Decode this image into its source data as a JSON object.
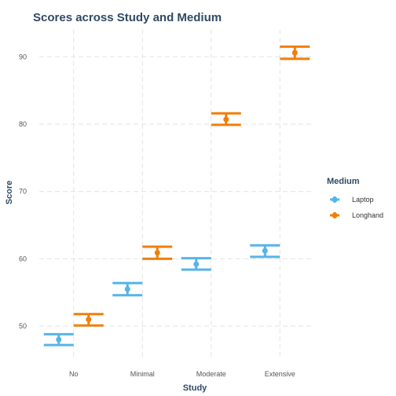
{
  "chart_data": {
    "type": "errorbar",
    "title": "Scores across Study and Medium",
    "xlabel": "Study",
    "ylabel": "Score",
    "categories": [
      "No",
      "Minimal",
      "Moderate",
      "Extensive"
    ],
    "ylim": [
      45,
      94
    ],
    "yticks": [
      50,
      60,
      70,
      80,
      90
    ],
    "grid": true,
    "legend": {
      "title": "Medium",
      "position": "right"
    },
    "series": [
      {
        "name": "Laptop",
        "color": "#56B4E9",
        "values": [
          48.0,
          55.5,
          59.2,
          61.2
        ],
        "lower": [
          47.2,
          54.6,
          58.4,
          60.3
        ],
        "upper": [
          48.8,
          56.4,
          60.1,
          62.0
        ]
      },
      {
        "name": "Longhand",
        "color": "#F07F0A",
        "values": [
          51.0,
          60.9,
          80.7,
          90.6
        ],
        "lower": [
          50.1,
          60.0,
          79.9,
          89.7
        ],
        "upper": [
          51.8,
          61.8,
          81.6,
          91.5
        ]
      }
    ]
  }
}
